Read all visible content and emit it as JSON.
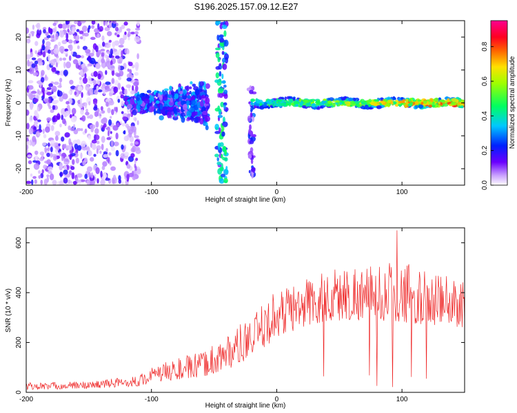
{
  "title": "S196.2025.157.09.12.E27",
  "chart_data": [
    {
      "type": "heatmap",
      "xlabel": "Height of straight line (km)",
      "ylabel": "Frequency (Hz)",
      "xlim": [
        -200,
        150
      ],
      "ylim": [
        -25,
        25
      ],
      "xticks": [
        -200,
        -100,
        0,
        100
      ],
      "yticks": [
        -20,
        -10,
        0,
        10,
        20
      ],
      "grid": false,
      "colorbar": {
        "label": "Normalized spectral amplitude",
        "range": [
          0,
          0.95
        ],
        "ticks": [
          0.0,
          0.2,
          0.4,
          0.6,
          0.8
        ],
        "colormap": "white-violet-blue-cyan-green-yellow-red-magenta"
      },
      "features": [
        {
          "description": "scattered noise",
          "x_range": [
            -200,
            -110
          ],
          "freq_range": [
            -25,
            25
          ],
          "amplitude": 0.15
        },
        {
          "description": "broadening cluster",
          "x_range": [
            -120,
            -55
          ],
          "freq_range": [
            -10,
            8
          ],
          "amplitude": 0.25
        },
        {
          "description": "vertical streak",
          "x_range": [
            -48,
            -40
          ],
          "freq_range": [
            -25,
            25
          ],
          "amplitude": 0.35
        },
        {
          "description": "vertical streak",
          "x_range": [
            -22,
            -18
          ],
          "freq_range": [
            -22,
            5
          ],
          "amplitude": 0.2
        },
        {
          "description": "narrow signal band",
          "x_range": [
            -20,
            150
          ],
          "freq_range": [
            -2,
            2
          ],
          "amplitude": 0.8
        }
      ]
    },
    {
      "type": "line",
      "xlabel": "Height of straight line (km)",
      "ylabel": "SNR (10 * v/v)",
      "xlim": [
        -200,
        150
      ],
      "ylim": [
        0,
        660
      ],
      "xticks": [
        -200,
        -100,
        0,
        100
      ],
      "yticks": [
        0,
        200,
        400,
        600
      ],
      "grid": false,
      "series": [
        {
          "color": "#ee2222",
          "x_start": -200,
          "x_end": 150,
          "x_step": 0.5,
          "envelope_x": [
            -200,
            -150,
            -110,
            -100,
            -80,
            -60,
            -40,
            -20,
            0,
            20,
            40,
            60,
            80,
            100,
            120,
            150
          ],
          "envelope_base": [
            10,
            15,
            25,
            40,
            50,
            60,
            90,
            140,
            220,
            260,
            280,
            290,
            290,
            280,
            270,
            260
          ],
          "envelope_peak": [
            40,
            45,
            70,
            100,
            140,
            160,
            240,
            300,
            420,
            460,
            500,
            520,
            510,
            540,
            480,
            470
          ],
          "max": {
            "x": 96,
            "y": 650
          }
        }
      ]
    }
  ]
}
